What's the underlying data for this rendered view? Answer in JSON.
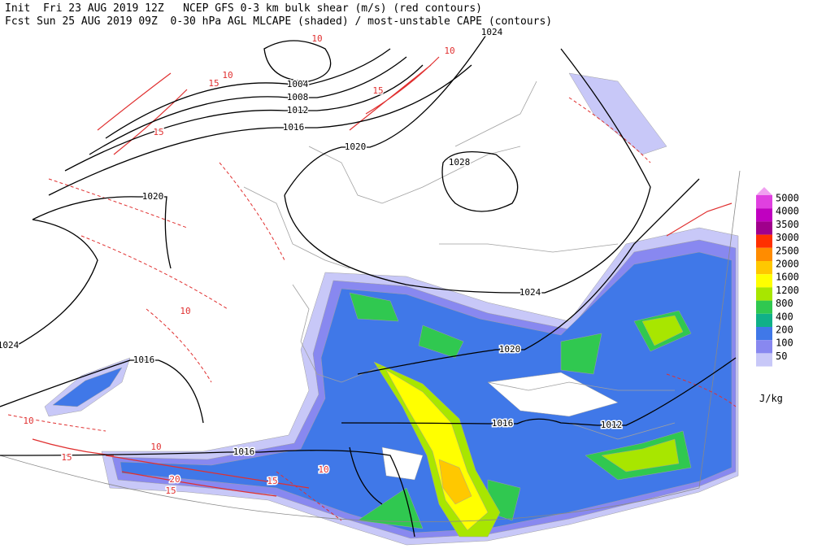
{
  "header": {
    "line1": "Init  Fri 23 AUG 2019 12Z   NCEP GFS 0-3 km bulk shear (m/s) (red contours)",
    "line2": "Fcst Sun 25 AUG 2019 09Z  0-30 hPa AGL MLCAPE (shaded) / most-unstable CAPE (contours)"
  },
  "legend": {
    "levels": [
      5000,
      4000,
      3500,
      3000,
      2500,
      2000,
      1600,
      1200,
      800,
      400,
      200,
      100,
      50
    ],
    "colors": [
      "#e040e0",
      "#c000c0",
      "#a0008c",
      "#ff3000",
      "#ff8c00",
      "#ffc800",
      "#ffff00",
      "#a8e600",
      "#30c850",
      "#10b088",
      "#4078e8",
      "#8888f0",
      "#c8c8f8"
    ],
    "top_color": "#f0a0f0",
    "unit": "J/kg"
  },
  "isobar_labels": [
    "1024",
    "1004",
    "1008",
    "1012",
    "1016",
    "1020",
    "1028",
    "1020",
    "1024",
    "1024",
    "1020",
    "1016",
    "1016",
    "1012",
    "1016"
  ],
  "shear_labels": [
    "10",
    "15",
    "10",
    "15",
    "15",
    "10",
    "10",
    "10",
    "15",
    "10",
    "20",
    "15",
    "10",
    "15"
  ]
}
